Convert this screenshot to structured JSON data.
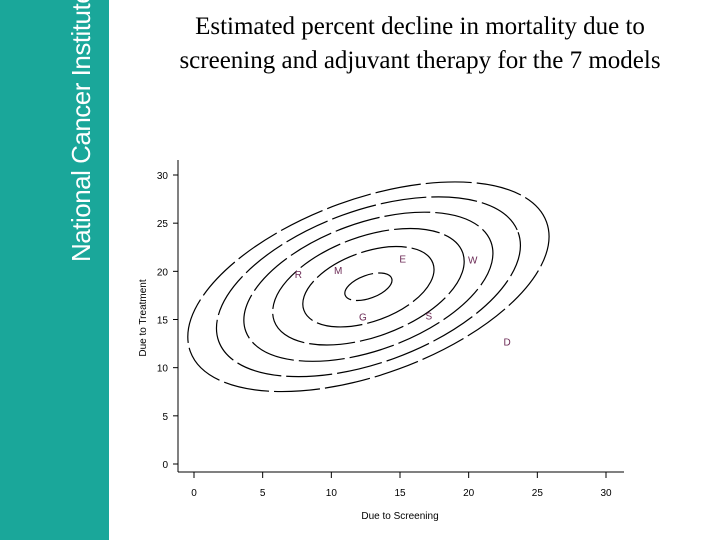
{
  "sidebar": {
    "logo_text": "National Cancer Institute",
    "color": "#1aa79a"
  },
  "slide": {
    "title_line1": "Estimated percent decline in mortality due to",
    "title_line2": "screening and adjuvant therapy for the 7 models"
  },
  "chart_data": {
    "type": "contour",
    "title": "Estimated percent decline in mortality due to screening and adjuvant therapy for the 7 models",
    "xlabel": "Due to Screening",
    "ylabel": "Due to Treatment",
    "xlim": [
      0,
      30
    ],
    "ylim": [
      0,
      30
    ],
    "x_ticks": [
      0,
      5,
      10,
      15,
      20,
      25,
      30
    ],
    "y_ticks": [
      0,
      5,
      10,
      15,
      20,
      25,
      30
    ],
    "contour_center": {
      "x": 12.7,
      "y": 18.4
    },
    "contour_levels": [
      {
        "level": 1,
        "rx": 1.8,
        "ry": 1.2
      },
      {
        "level": 2,
        "rx": 5.0,
        "ry": 3.6
      },
      {
        "level": 3,
        "rx": 7.3,
        "ry": 5.2
      },
      {
        "level": 4,
        "rx": 9.5,
        "ry": 6.6
      },
      {
        "level": 5,
        "rx": 11.6,
        "ry": 7.9
      },
      {
        "level": 6,
        "rx": 13.8,
        "ry": 9.1
      }
    ],
    "contour_tilt_deg": -20,
    "points": [
      {
        "label": "R",
        "x": 7.6,
        "y": 19.3
      },
      {
        "label": "M",
        "x": 10.5,
        "y": 19.7
      },
      {
        "label": "E",
        "x": 15.2,
        "y": 20.9
      },
      {
        "label": "W",
        "x": 20.3,
        "y": 20.8
      },
      {
        "label": "G",
        "x": 12.3,
        "y": 14.9
      },
      {
        "label": "S",
        "x": 17.1,
        "y": 15.0
      },
      {
        "label": "D",
        "x": 22.8,
        "y": 12.3
      }
    ],
    "colors": {
      "axis": "#000000",
      "labels": "#6b2a55"
    }
  }
}
